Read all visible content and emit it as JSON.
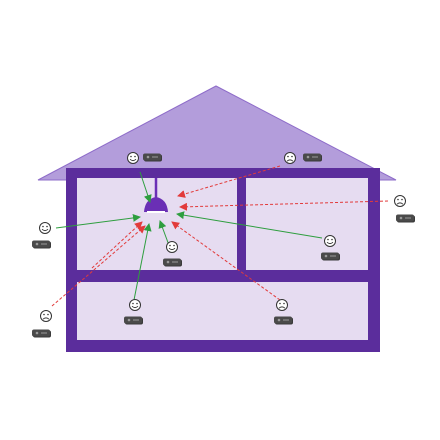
{
  "colors": {
    "roof": "#b39ddb",
    "roof_stroke": "#8e6cc9",
    "wall": "#5b2d9c",
    "room": "#e6dcf1",
    "lamp": "#6a2fb5",
    "good": "#2e9e3f",
    "bad": "#e23b3b",
    "device": "#3a3a3a"
  },
  "icons": {
    "lamp": "ceiling-lamp-icon",
    "device": "remote-control-icon",
    "happy": "smiley-happy-icon",
    "sad": "smiley-sad-icon"
  },
  "devices": [
    {
      "id": "roof-left",
      "status": "happy",
      "signal": "success"
    },
    {
      "id": "roof-right",
      "status": "sad",
      "signal": "fail"
    },
    {
      "id": "outside-left",
      "status": "happy",
      "signal": "success"
    },
    {
      "id": "outside-right",
      "status": "sad",
      "signal": "fail"
    },
    {
      "id": "room-right",
      "status": "happy",
      "signal": "success"
    },
    {
      "id": "near-lamp",
      "status": "happy",
      "signal": "success"
    },
    {
      "id": "outside-bottom-left",
      "status": "sad",
      "signal": "fail"
    },
    {
      "id": "ground-left",
      "status": "happy",
      "signal": "success"
    },
    {
      "id": "ground-right",
      "status": "sad",
      "signal": "fail"
    }
  ]
}
